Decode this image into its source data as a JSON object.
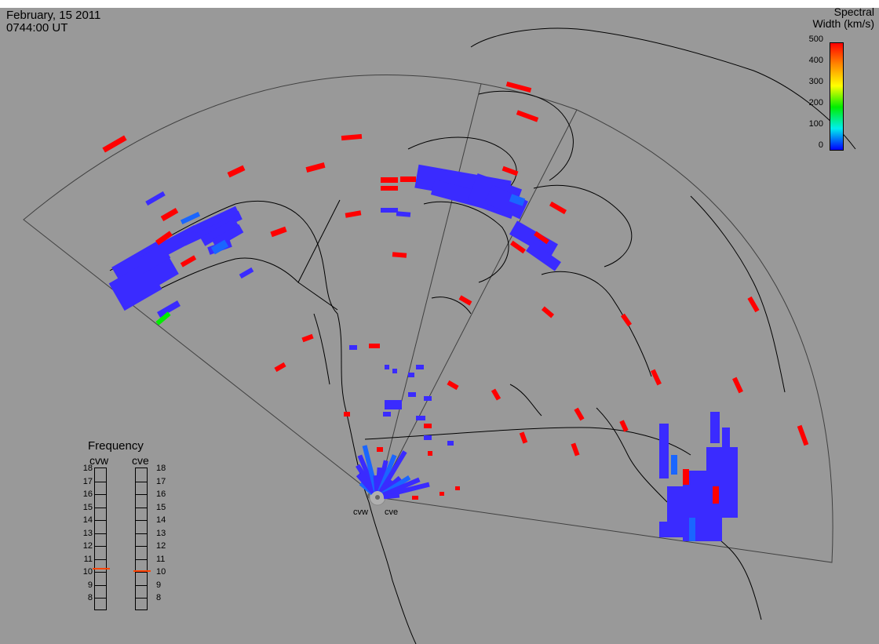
{
  "header": {
    "date": "February, 15 2011",
    "time": "0744:00 UT"
  },
  "colorbar": {
    "title_line1": "Spectral",
    "title_line2": "Width (km/s)",
    "ticks": [
      "500",
      "400",
      "300",
      "200",
      "100",
      "0"
    ],
    "colors": [
      "#ff0000",
      "#ff8800",
      "#ffff00",
      "#00ee00",
      "#00eeee",
      "#0000ff"
    ]
  },
  "frequency": {
    "title": "Frequency",
    "radars": [
      "cvw",
      "cve"
    ],
    "ticks": [
      "18",
      "17",
      "16",
      "15",
      "14",
      "13",
      "12",
      "11",
      "10",
      "9",
      "8"
    ],
    "values": [
      10.8,
      10.6
    ],
    "marker_color": "#ff4400"
  },
  "radars": {
    "west": "cvw",
    "east": "cve"
  },
  "palette": {
    "background": "#999999",
    "low": "#3a2bff",
    "mid": "#1a66ff",
    "high": "#ff0000",
    "green": "#00ee00"
  }
}
